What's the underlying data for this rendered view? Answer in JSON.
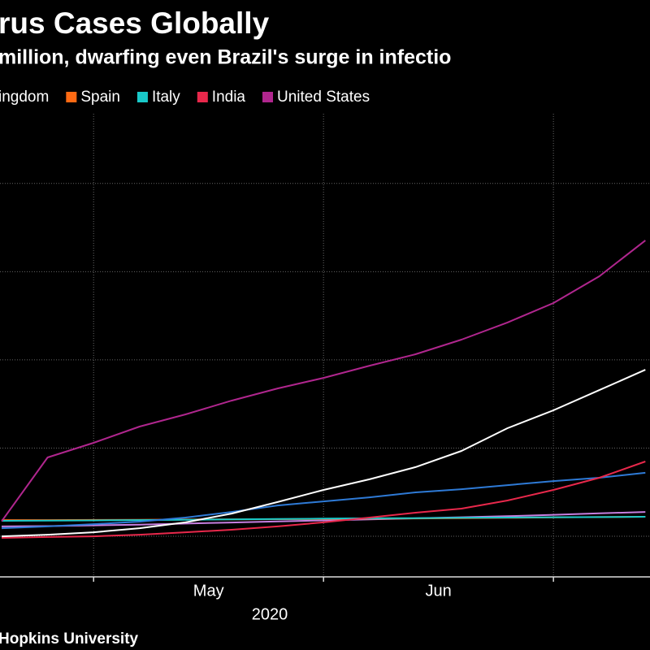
{
  "chart_data": {
    "type": "line",
    "title": "rus Cases Globally",
    "subtitle": "million, dwarfing even Brazil's surge in infectio",
    "source": "Hopkins University",
    "x": [
      4.6,
      4.8,
      5.0,
      5.2,
      5.4,
      5.6,
      5.8,
      6.0,
      6.2,
      6.4,
      6.6,
      6.8,
      7.0,
      7.2,
      7.4
    ],
    "xlim": [
      4.59,
      7.42
    ],
    "xticks": [
      5,
      6,
      7
    ],
    "xlabels": [
      {
        "value": 5.5,
        "label": "May"
      },
      {
        "value": 6.5,
        "label": "Jun"
      }
    ],
    "xlabel": "2020",
    "ylim": [
      270000,
      3540000
    ],
    "yticks": [
      500000,
      1000000,
      1500000,
      2000000,
      2500000
    ],
    "grid": true,
    "series": [
      {
        "name": "ingdom",
        "color": "#c77fe0",
        "values": [
          556000,
          558000,
          562000,
          566000,
          572000,
          578000,
          584000,
          590000,
          596000,
          602000,
          608000,
          614000,
          622000,
          630000,
          638000
        ]
      },
      {
        "name": "Spain",
        "color": "#ff6a13",
        "values": [
          592000,
          592000,
          593000,
          594000,
          595000,
          596000,
          597000,
          598000,
          600000,
          601000,
          603000,
          605000,
          607000,
          609000,
          611000
        ]
      },
      {
        "name": "Italy",
        "color": "#19c9c9",
        "values": [
          588000,
          589000,
          590000,
          592000,
          594000,
          596000,
          598000,
          600000,
          602000,
          603000,
          605000,
          606000,
          608000,
          609000,
          611000
        ]
      },
      {
        "color": "#2e7ad6",
        "values": [
          546000,
          556000,
          569000,
          583000,
          606000,
          638000,
          675000,
          698000,
          721000,
          749000,
          767000,
          790000,
          813000,
          832000,
          860000
        ]
      },
      {
        "name": "India",
        "color": "#e8284b",
        "values": [
          491000,
          496000,
          500000,
          509000,
          523000,
          537000,
          556000,
          579000,
          606000,
          634000,
          657000,
          703000,
          763000,
          832000,
          924000
        ]
      },
      {
        "color": "#ffffff",
        "values": [
          500000,
          509000,
          523000,
          546000,
          579000,
          629000,
          694000,
          763000,
          823000,
          892000,
          984000,
          1113000,
          1214000,
          1329000,
          1444000
        ]
      },
      {
        "name": "United States",
        "color": "#b0268e",
        "values": [
          585000,
          947000,
          1030000,
          1122000,
          1191000,
          1269000,
          1338000,
          1398000,
          1467000,
          1532000,
          1615000,
          1712000,
          1822000,
          1974000,
          2177000
        ]
      }
    ]
  }
}
